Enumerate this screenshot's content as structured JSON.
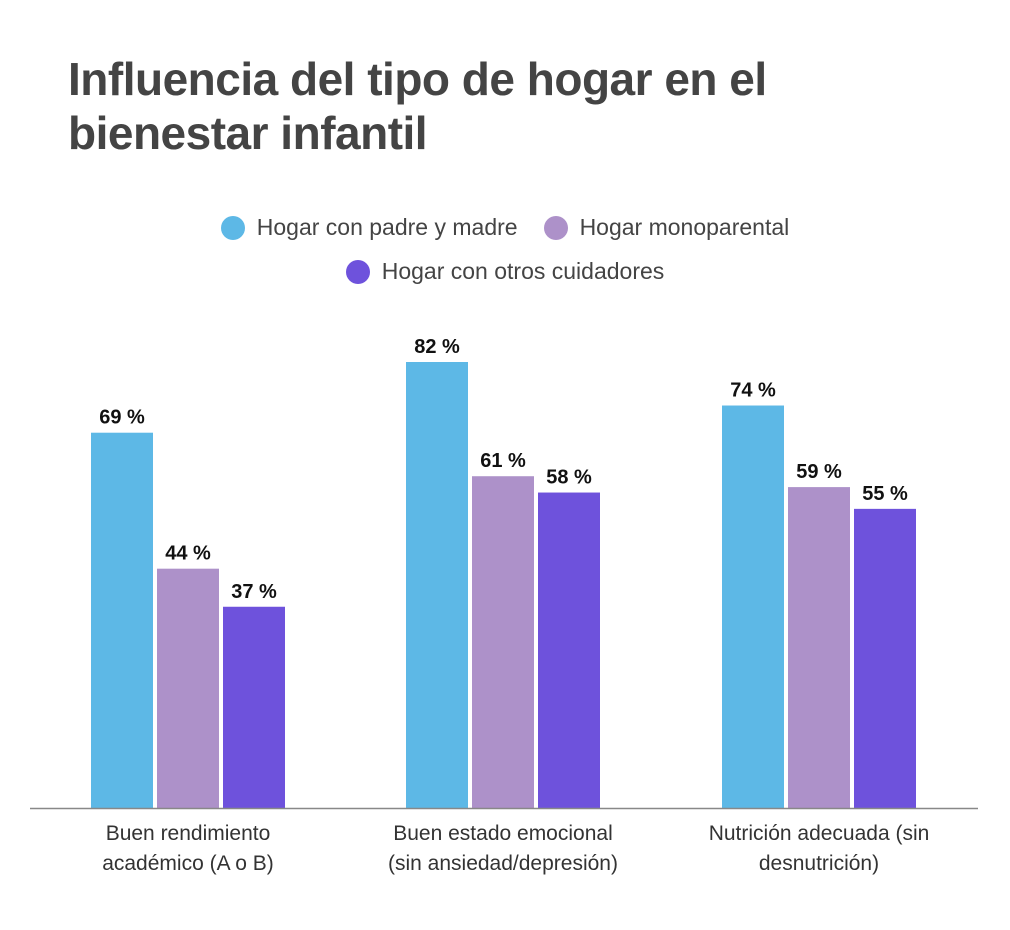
{
  "chart_data": {
    "type": "bar",
    "title": "Influencia del tipo de hogar en el bienestar infantil",
    "categories": [
      [
        "Buen rendimiento",
        "académico (A o B)"
      ],
      [
        "Buen estado emocional",
        "(sin ansiedad/depresión)"
      ],
      [
        "Nutrición adecuada (sin",
        "desnutrición)"
      ]
    ],
    "series": [
      {
        "name": "Hogar con padre y madre",
        "color": "#5db8e6",
        "values": [
          69,
          82,
          74
        ],
        "labels": [
          "69 %",
          "82 %",
          "74 %"
        ]
      },
      {
        "name": "Hogar monoparental",
        "color": "#ad91c9",
        "values": [
          44,
          61,
          59
        ],
        "labels": [
          "44 %",
          "61 %",
          "59 %"
        ]
      },
      {
        "name": "Hogar con otros cuidadores",
        "color": "#6e52dc",
        "values": [
          37,
          58,
          55
        ],
        "labels": [
          "37 %",
          "58 %",
          "55 %"
        ]
      }
    ],
    "ylim": [
      0,
      82
    ],
    "grid": false,
    "legend_position": "top-center",
    "axis_color": "#888888"
  }
}
